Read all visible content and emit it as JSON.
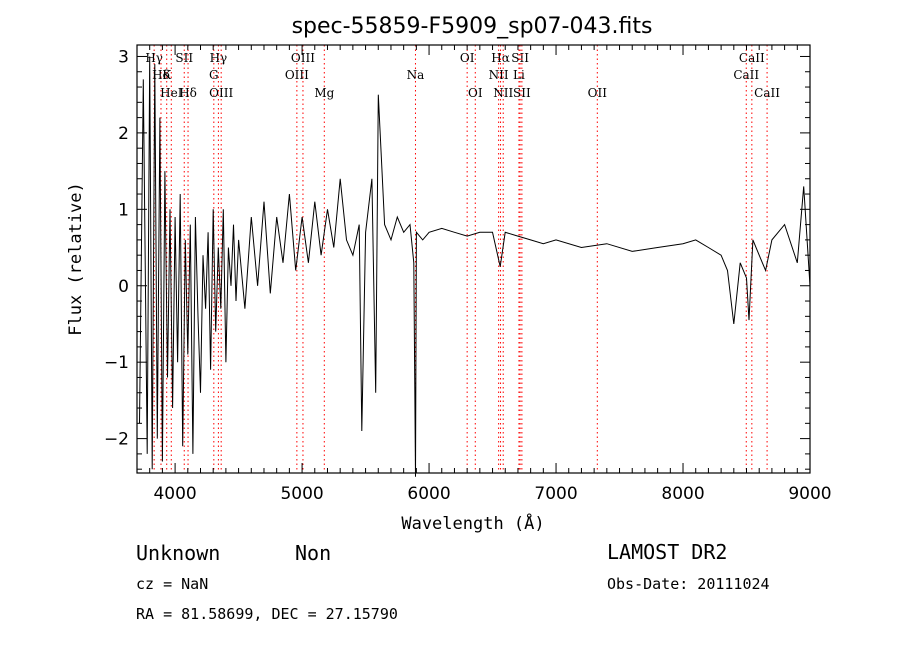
{
  "chart_data": {
    "type": "line",
    "title": "spec-55859-F5909_sp07-043.fits",
    "xlabel": "Wavelength (Å)",
    "ylabel": "Flux (relative)",
    "xlim": [
      3700,
      9000
    ],
    "ylim": [
      -2.45,
      3.15
    ],
    "x_ticks": [
      4000,
      5000,
      6000,
      7000,
      8000,
      9000
    ],
    "y_ticks": [
      -2,
      -1,
      0,
      1,
      2,
      3
    ],
    "line_color": "#000000",
    "marker_color": "#ff0000",
    "series": [
      {
        "x": [
          3720,
          3750,
          3780,
          3800,
          3820,
          3840,
          3860,
          3880,
          3900,
          3920,
          3940,
          3960,
          3980,
          4000,
          4020,
          4040,
          4060,
          4080,
          4100,
          4120,
          4140,
          4160,
          4180,
          4200,
          4220,
          4240,
          4260,
          4280,
          4300,
          4320,
          4340,
          4360,
          4380,
          4400,
          4420,
          4440,
          4460,
          4480,
          4500,
          4550,
          4600,
          4650,
          4700,
          4750,
          4800,
          4850,
          4900,
          4950,
          5000,
          5050,
          5100,
          5150,
          5200,
          5250,
          5300,
          5350,
          5400,
          5450,
          5470,
          5500,
          5550,
          5580,
          5600,
          5650,
          5700,
          5750,
          5800,
          5850,
          5880,
          5893,
          5900,
          5950,
          6000,
          6100,
          6200,
          6300,
          6400,
          6500,
          6560,
          6600,
          6700,
          6800,
          6900,
          7000,
          7200,
          7400,
          7600,
          7800,
          8000,
          8100,
          8200,
          8300,
          8350,
          8400,
          8450,
          8500,
          8520,
          8550,
          8600,
          8650,
          8700,
          8800,
          8900,
          8950,
          9000
        ],
        "y": [
          -1.8,
          2.7,
          -2.2,
          3.0,
          -2.4,
          2.9,
          -2.0,
          2.2,
          -2.3,
          1.5,
          -1.2,
          1.0,
          -1.6,
          0.9,
          -1.0,
          1.2,
          -2.1,
          0.6,
          -0.9,
          0.8,
          -2.2,
          0.9,
          -0.4,
          -1.4,
          0.4,
          -0.3,
          0.7,
          -1.1,
          1.0,
          -0.6,
          0.5,
          -0.3,
          1.0,
          -1.0,
          0.5,
          0.0,
          0.8,
          -0.2,
          0.6,
          -0.3,
          0.9,
          0.0,
          1.1,
          -0.1,
          0.9,
          0.3,
          1.2,
          0.2,
          0.9,
          0.3,
          1.1,
          0.4,
          1.0,
          0.5,
          1.4,
          0.6,
          0.4,
          0.8,
          -1.9,
          0.7,
          1.4,
          -1.4,
          2.5,
          0.8,
          0.6,
          0.9,
          0.7,
          0.8,
          0.3,
          -2.5,
          0.7,
          0.6,
          0.7,
          0.75,
          0.7,
          0.65,
          0.7,
          0.7,
          0.25,
          0.7,
          0.65,
          0.6,
          0.55,
          0.6,
          0.5,
          0.55,
          0.45,
          0.5,
          0.55,
          0.6,
          0.5,
          0.4,
          0.2,
          -0.5,
          0.3,
          0.1,
          -0.45,
          0.6,
          0.4,
          0.2,
          0.6,
          0.8,
          0.3,
          1.3,
          0.0
        ]
      }
    ],
    "lines": [
      {
        "label": "Hγ",
        "wl": 3835,
        "row": 1
      },
      {
        "label": "Hδ",
        "wl": 3889,
        "row": 2
      },
      {
        "label": "K",
        "wl": 3934,
        "row": 2
      },
      {
        "label": "HeI",
        "wl": 3970,
        "row": 3
      },
      {
        "label": "SII",
        "wl": 4072,
        "row": 1
      },
      {
        "label": "Hδ",
        "wl": 4102,
        "row": 3
      },
      {
        "label": "Hγ",
        "wl": 4341,
        "row": 1
      },
      {
        "label": "G",
        "wl": 4305,
        "row": 2
      },
      {
        "label": "OIII",
        "wl": 4363,
        "row": 3
      },
      {
        "label": "OIII",
        "wl": 5007,
        "row": 1
      },
      {
        "label": "OIII",
        "wl": 4959,
        "row": 2
      },
      {
        "label": "Mg",
        "wl": 5175,
        "row": 3
      },
      {
        "label": "Na",
        "wl": 5893,
        "row": 2
      },
      {
        "label": "OI",
        "wl": 6300,
        "row": 1
      },
      {
        "label": "OI",
        "wl": 6364,
        "row": 3
      },
      {
        "label": "Hα",
        "wl": 6563,
        "row": 1
      },
      {
        "label": "SII",
        "wl": 6717,
        "row": 1
      },
      {
        "label": "NII",
        "wl": 6548,
        "row": 2
      },
      {
        "label": "Li",
        "wl": 6708,
        "row": 2
      },
      {
        "label": "NII",
        "wl": 6584,
        "row": 3
      },
      {
        "label": "SII",
        "wl": 6731,
        "row": 3
      },
      {
        "label": "OII",
        "wl": 7325,
        "row": 3
      },
      {
        "label": "CaII",
        "wl": 8542,
        "row": 1
      },
      {
        "label": "CaII",
        "wl": 8498,
        "row": 2
      },
      {
        "label": "CaII",
        "wl": 8662,
        "row": 3
      }
    ]
  },
  "info": {
    "class": "Unknown",
    "subclass": "Non",
    "cz": "cz = NaN",
    "coords": "RA =  81.58699, DEC =  27.15790",
    "survey": "LAMOST DR2",
    "obsdate": "Obs-Date: 20111024"
  }
}
